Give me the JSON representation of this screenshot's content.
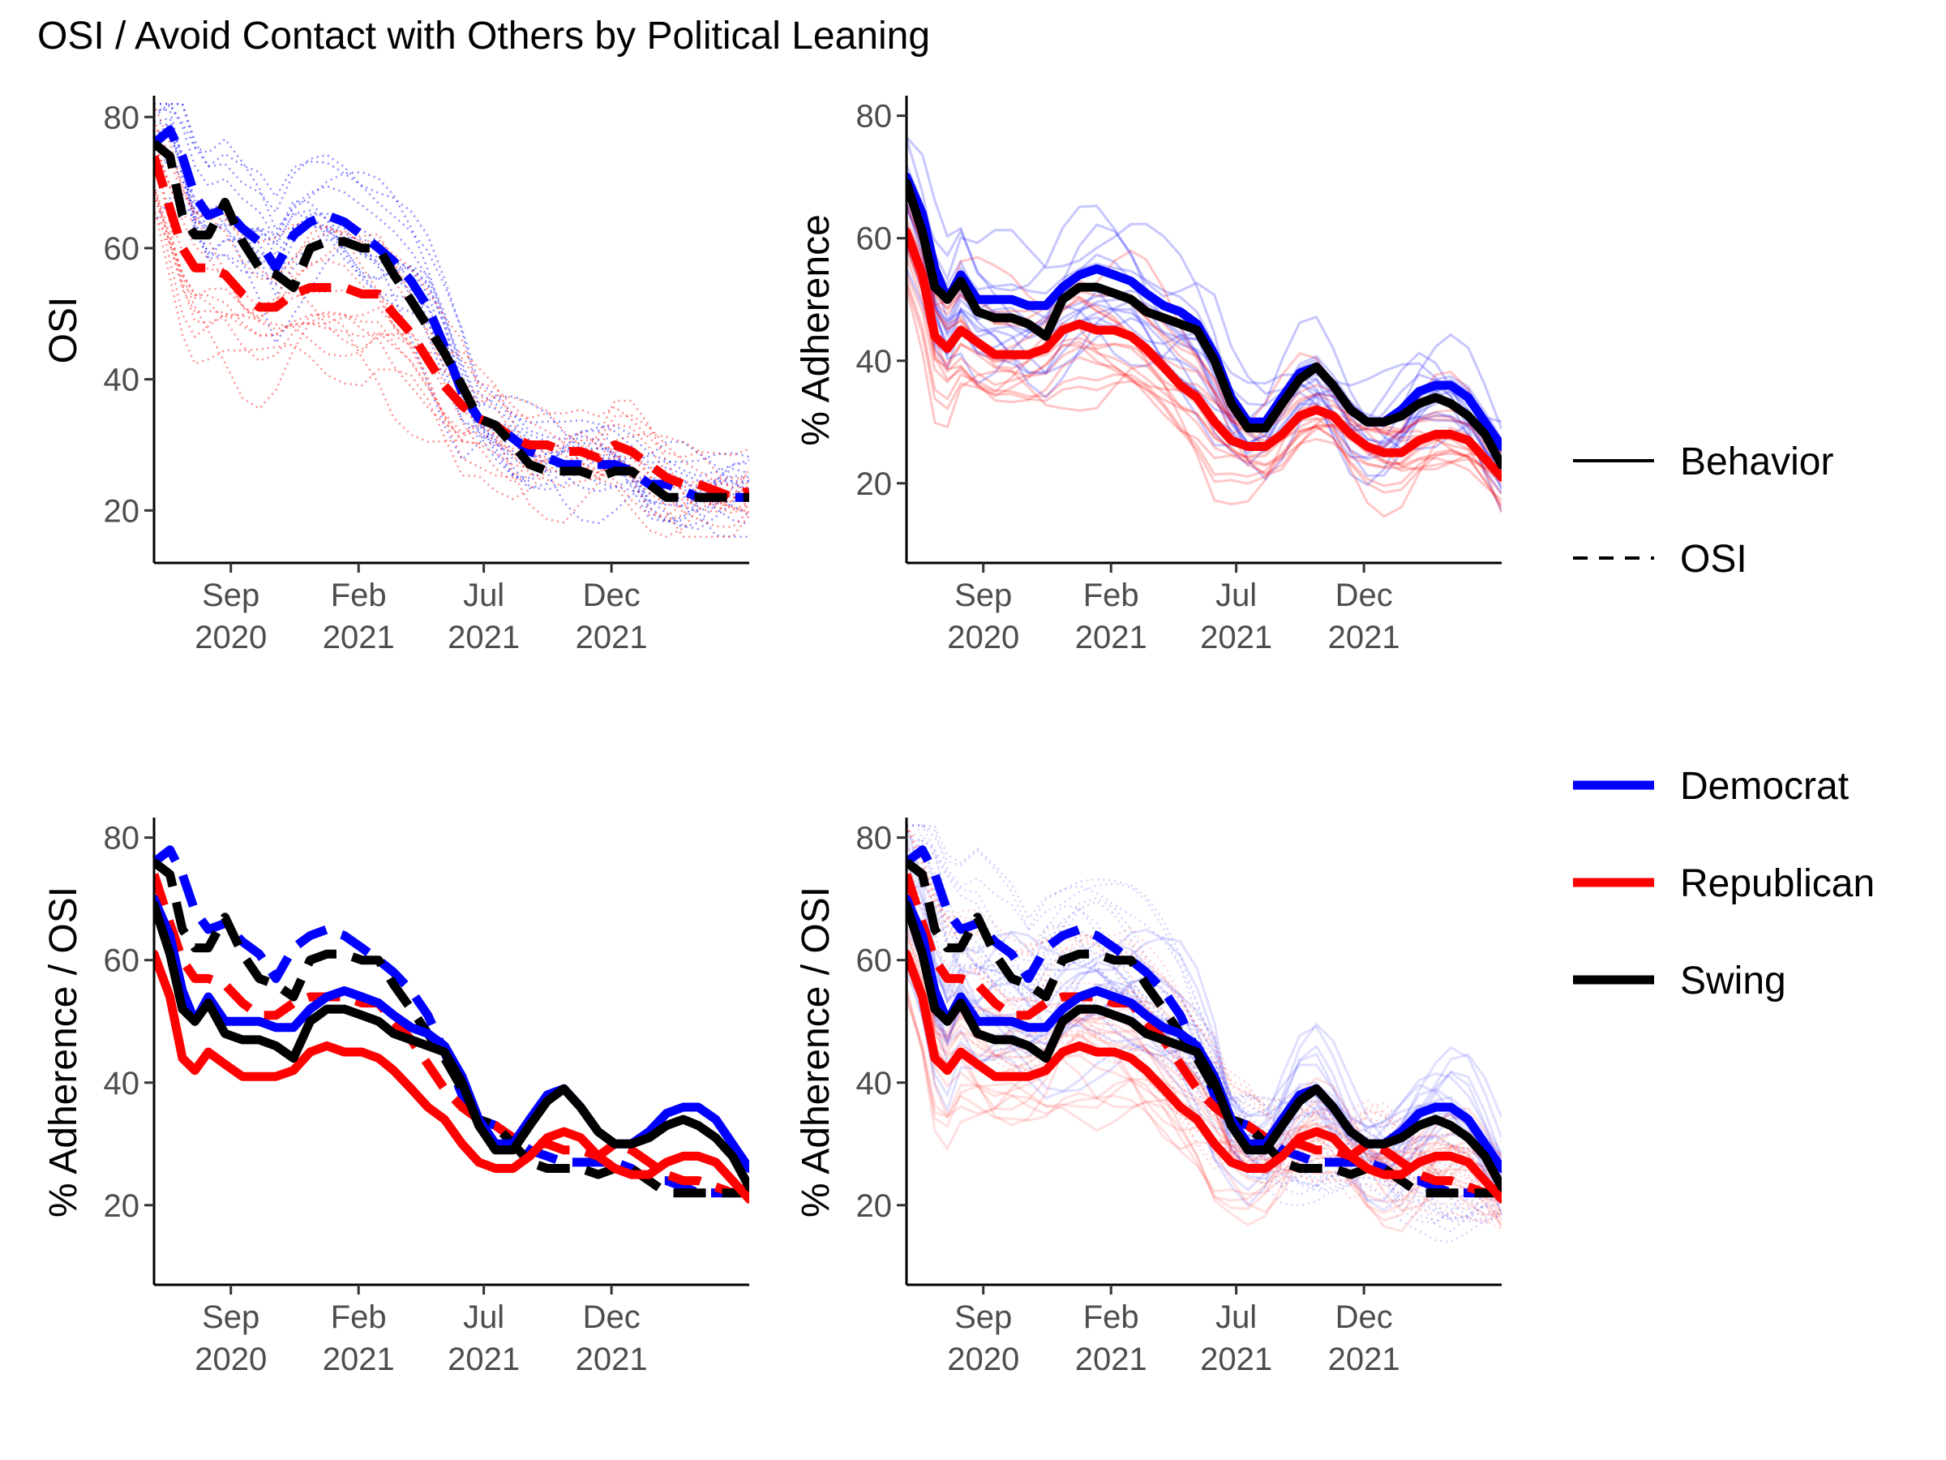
{
  "title": "OSI / Avoid Contact with Others by Political Leaning",
  "colors": {
    "Democrat": "#0000ff",
    "Republican": "#ff0000",
    "Swing": "#000000"
  },
  "legend": {
    "linetype": [
      {
        "label": "Behavior",
        "style": "solid"
      },
      {
        "label": "OSI",
        "style": "dashed"
      }
    ],
    "party": [
      {
        "label": "Democrat",
        "color": "#0000ff"
      },
      {
        "label": "Republican",
        "color": "#ff0000"
      },
      {
        "label": "Swing",
        "color": "#000000"
      }
    ]
  },
  "chart_data": [
    {
      "type": "line",
      "panel": "top-left",
      "ylabel": "OSI",
      "ylim": [
        12,
        83
      ],
      "yticks": [
        20,
        40,
        60,
        80
      ],
      "xlim": [
        "2020-06-01",
        "2022-05-15"
      ],
      "xticks": [
        {
          "date": "2020-09-01",
          "label": [
            "Sep",
            "2020"
          ]
        },
        {
          "date": "2021-02-01",
          "label": [
            "Feb",
            "2021"
          ]
        },
        {
          "date": "2021-07-01",
          "label": [
            "Jul",
            "2021"
          ]
        },
        {
          "date": "2021-12-01",
          "label": [
            "Dec",
            "2021"
          ]
        }
      ],
      "background": "dotted state-level OSI series",
      "series": [
        {
          "name": "Democrat",
          "measure": "OSI",
          "x": [
            "2020-06-01",
            "2020-06-20",
            "2020-07-05",
            "2020-07-20",
            "2020-08-05",
            "2020-08-25",
            "2020-09-15",
            "2020-10-05",
            "2020-10-25",
            "2020-11-15",
            "2020-12-05",
            "2020-12-25",
            "2021-01-15",
            "2021-02-05",
            "2021-02-25",
            "2021-03-15",
            "2021-04-05",
            "2021-04-25",
            "2021-05-15",
            "2021-06-05",
            "2021-06-25",
            "2021-07-15",
            "2021-08-05",
            "2021-08-25",
            "2021-09-15",
            "2021-10-05",
            "2021-10-25",
            "2021-11-15",
            "2021-12-05",
            "2021-12-25",
            "2022-01-15",
            "2022-02-05",
            "2022-02-25",
            "2022-03-15",
            "2022-04-05",
            "2022-04-25",
            "2022-05-15"
          ],
          "values": [
            76,
            78,
            74,
            68,
            65,
            66,
            63,
            61,
            57,
            62,
            64,
            65,
            64,
            62,
            60,
            58,
            55,
            51,
            45,
            38,
            34,
            33,
            31,
            29,
            28,
            27,
            27,
            27,
            27,
            26,
            24,
            24,
            23,
            22,
            22,
            22,
            22
          ]
        },
        {
          "name": "Republican",
          "measure": "OSI",
          "x": [
            "2020-06-01",
            "2020-06-20",
            "2020-07-05",
            "2020-07-20",
            "2020-08-05",
            "2020-08-25",
            "2020-09-15",
            "2020-10-05",
            "2020-10-25",
            "2020-11-15",
            "2020-12-05",
            "2020-12-25",
            "2021-01-15",
            "2021-02-05",
            "2021-02-25",
            "2021-03-15",
            "2021-04-05",
            "2021-04-25",
            "2021-05-15",
            "2021-06-05",
            "2021-06-25",
            "2021-07-15",
            "2021-08-05",
            "2021-08-25",
            "2021-09-15",
            "2021-10-05",
            "2021-10-25",
            "2021-11-15",
            "2021-12-05",
            "2021-12-25",
            "2022-01-15",
            "2022-02-05",
            "2022-02-25",
            "2022-03-15",
            "2022-04-05",
            "2022-04-25",
            "2022-05-15"
          ],
          "values": [
            74,
            66,
            60,
            57,
            57,
            56,
            53,
            51,
            51,
            53,
            54,
            54,
            54,
            53,
            53,
            50,
            47,
            43,
            39,
            36,
            34,
            33,
            31,
            30,
            30,
            29,
            29,
            28,
            30,
            29,
            27,
            25,
            24,
            24,
            23,
            22,
            23
          ]
        },
        {
          "name": "Swing",
          "measure": "OSI",
          "x": [
            "2020-06-01",
            "2020-06-20",
            "2020-07-05",
            "2020-07-20",
            "2020-08-05",
            "2020-08-25",
            "2020-09-15",
            "2020-10-05",
            "2020-10-25",
            "2020-11-15",
            "2020-12-05",
            "2020-12-25",
            "2021-01-15",
            "2021-02-05",
            "2021-02-25",
            "2021-03-15",
            "2021-04-05",
            "2021-04-25",
            "2021-05-15",
            "2021-06-05",
            "2021-06-25",
            "2021-07-15",
            "2021-08-05",
            "2021-08-25",
            "2021-09-15",
            "2021-10-05",
            "2021-10-25",
            "2021-11-15",
            "2021-12-05",
            "2021-12-25",
            "2022-01-15",
            "2022-02-05",
            "2022-02-25",
            "2022-03-15",
            "2022-04-05",
            "2022-04-25",
            "2022-05-15"
          ],
          "values": [
            76,
            74,
            65,
            62,
            62,
            67,
            61,
            57,
            56,
            54,
            60,
            61,
            61,
            60,
            60,
            56,
            52,
            48,
            44,
            39,
            34,
            33,
            30,
            27,
            26,
            26,
            26,
            25,
            26,
            26,
            24,
            22,
            22,
            22,
            22,
            22,
            22
          ]
        }
      ]
    },
    {
      "type": "line",
      "panel": "top-right",
      "ylabel": "% Adherence",
      "ylim": [
        7,
        83
      ],
      "yticks": [
        20,
        40,
        60,
        80
      ],
      "xlim": [
        "2020-06-01",
        "2022-05-15"
      ],
      "xticks": [
        {
          "date": "2020-09-01",
          "label": [
            "Sep",
            "2020"
          ]
        },
        {
          "date": "2021-02-01",
          "label": [
            "Feb",
            "2021"
          ]
        },
        {
          "date": "2021-07-01",
          "label": [
            "Jul",
            "2021"
          ]
        },
        {
          "date": "2021-12-01",
          "label": [
            "Dec",
            "2021"
          ]
        }
      ],
      "background": "thin translucent state-level behavior series",
      "series": [
        {
          "name": "Democrat",
          "measure": "Behavior",
          "x": [
            "2020-06-01",
            "2020-06-20",
            "2020-07-05",
            "2020-07-20",
            "2020-08-05",
            "2020-08-25",
            "2020-09-15",
            "2020-10-05",
            "2020-10-25",
            "2020-11-15",
            "2020-12-05",
            "2020-12-25",
            "2021-01-15",
            "2021-02-05",
            "2021-02-25",
            "2021-03-15",
            "2021-04-05",
            "2021-04-25",
            "2021-05-15",
            "2021-06-05",
            "2021-06-25",
            "2021-07-15",
            "2021-08-05",
            "2021-08-25",
            "2021-09-15",
            "2021-10-05",
            "2021-10-25",
            "2021-11-15",
            "2021-12-05",
            "2021-12-25",
            "2022-01-15",
            "2022-02-05",
            "2022-02-25",
            "2022-03-15",
            "2022-04-05",
            "2022-04-25",
            "2022-05-15"
          ],
          "values": [
            70,
            64,
            55,
            50,
            54,
            50,
            50,
            50,
            49,
            49,
            52,
            54,
            55,
            54,
            53,
            51,
            49,
            48,
            46,
            41,
            34,
            30,
            30,
            34,
            38,
            39,
            36,
            32,
            30,
            30,
            32,
            35,
            36,
            36,
            34,
            30,
            26
          ]
        },
        {
          "name": "Republican",
          "measure": "Behavior",
          "x": [
            "2020-06-01",
            "2020-06-20",
            "2020-07-05",
            "2020-07-20",
            "2020-08-05",
            "2020-08-25",
            "2020-09-15",
            "2020-10-05",
            "2020-10-25",
            "2020-11-15",
            "2020-12-05",
            "2020-12-25",
            "2021-01-15",
            "2021-02-05",
            "2021-02-25",
            "2021-03-15",
            "2021-04-05",
            "2021-04-25",
            "2021-05-15",
            "2021-06-05",
            "2021-06-25",
            "2021-07-15",
            "2021-08-05",
            "2021-08-25",
            "2021-09-15",
            "2021-10-05",
            "2021-10-25",
            "2021-11-15",
            "2021-12-05",
            "2021-12-25",
            "2022-01-15",
            "2022-02-05",
            "2022-02-25",
            "2022-03-15",
            "2022-04-05",
            "2022-04-25",
            "2022-05-15"
          ],
          "values": [
            61,
            54,
            44,
            42,
            45,
            43,
            41,
            41,
            41,
            42,
            45,
            46,
            45,
            45,
            44,
            42,
            39,
            36,
            34,
            30,
            27,
            26,
            26,
            28,
            31,
            32,
            31,
            28,
            26,
            25,
            25,
            27,
            28,
            28,
            27,
            24,
            21
          ]
        },
        {
          "name": "Swing",
          "measure": "Behavior",
          "x": [
            "2020-06-01",
            "2020-06-20",
            "2020-07-05",
            "2020-07-20",
            "2020-08-05",
            "2020-08-25",
            "2020-09-15",
            "2020-10-05",
            "2020-10-25",
            "2020-11-15",
            "2020-12-05",
            "2020-12-25",
            "2021-01-15",
            "2021-02-05",
            "2021-02-25",
            "2021-03-15",
            "2021-04-05",
            "2021-04-25",
            "2021-05-15",
            "2021-06-05",
            "2021-06-25",
            "2021-07-15",
            "2021-08-05",
            "2021-08-25",
            "2021-09-15",
            "2021-10-05",
            "2021-10-25",
            "2021-11-15",
            "2021-12-05",
            "2021-12-25",
            "2022-01-15",
            "2022-02-05",
            "2022-02-25",
            "2022-03-15",
            "2022-04-05",
            "2022-04-25",
            "2022-05-15"
          ],
          "values": [
            69,
            61,
            52,
            50,
            53,
            48,
            47,
            47,
            46,
            44,
            50,
            52,
            52,
            51,
            50,
            48,
            47,
            46,
            45,
            40,
            33,
            29,
            29,
            33,
            37,
            39,
            36,
            32,
            30,
            30,
            31,
            33,
            34,
            33,
            31,
            28,
            23
          ]
        }
      ]
    },
    {
      "type": "line",
      "panel": "bottom-left",
      "ylabel": "% Adherence / OSI",
      "ylim": [
        7,
        83
      ],
      "yticks": [
        20,
        40,
        60,
        80
      ],
      "xlim": [
        "2020-06-01",
        "2022-05-15"
      ],
      "xticks": [
        {
          "date": "2020-09-01",
          "label": [
            "Sep",
            "2020"
          ]
        },
        {
          "date": "2021-02-01",
          "label": [
            "Feb",
            "2021"
          ]
        },
        {
          "date": "2021-07-01",
          "label": [
            "Jul",
            "2021"
          ]
        },
        {
          "date": "2021-12-01",
          "label": [
            "Dec",
            "2021"
          ]
        }
      ],
      "series": [
        {
          "name": "Democrat",
          "measure": "OSI",
          "ref": "OSI"
        },
        {
          "name": "Republican",
          "measure": "OSI",
          "ref": "OSI"
        },
        {
          "name": "Swing",
          "measure": "OSI",
          "ref": "OSI"
        },
        {
          "name": "Democrat",
          "measure": "Behavior",
          "ref": "Behavior"
        },
        {
          "name": "Republican",
          "measure": "Behavior",
          "ref": "Behavior"
        },
        {
          "name": "Swing",
          "measure": "Behavior",
          "ref": "Behavior"
        }
      ]
    },
    {
      "type": "line",
      "panel": "bottom-right",
      "ylabel": "% Adherence / OSI",
      "ylim": [
        7,
        83
      ],
      "yticks": [
        20,
        40,
        60,
        80
      ],
      "xlim": [
        "2020-06-01",
        "2022-05-15"
      ],
      "xticks": [
        {
          "date": "2020-09-01",
          "label": [
            "Sep",
            "2020"
          ]
        },
        {
          "date": "2021-02-01",
          "label": [
            "Feb",
            "2021"
          ]
        },
        {
          "date": "2021-07-01",
          "label": [
            "Jul",
            "2021"
          ]
        },
        {
          "date": "2021-12-01",
          "label": [
            "Dec",
            "2021"
          ]
        }
      ],
      "background": "faint state-level behavior and OSI series",
      "series": [
        {
          "name": "Democrat",
          "measure": "OSI",
          "ref": "OSI"
        },
        {
          "name": "Republican",
          "measure": "OSI",
          "ref": "OSI"
        },
        {
          "name": "Swing",
          "measure": "OSI",
          "ref": "OSI"
        },
        {
          "name": "Democrat",
          "measure": "Behavior",
          "ref": "Behavior"
        },
        {
          "name": "Republican",
          "measure": "Behavior",
          "ref": "Behavior"
        },
        {
          "name": "Swing",
          "measure": "Behavior",
          "ref": "Behavior"
        }
      ]
    }
  ]
}
